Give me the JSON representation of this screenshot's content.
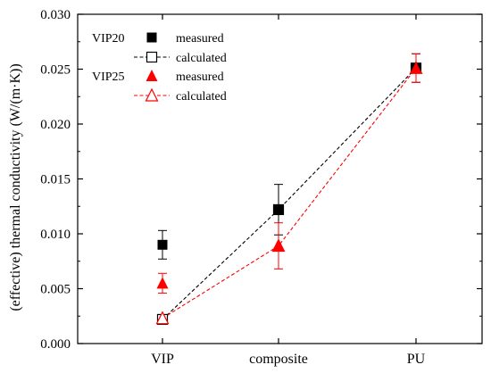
{
  "chart_data": {
    "type": "scatter",
    "ylabel": "(effective) thermal conductivity (W/(m·K))",
    "xlabel": "",
    "categories": [
      "VIP",
      "composite",
      "PU"
    ],
    "ylim": [
      0.0,
      0.03
    ],
    "yticks": [
      "0.000",
      "0.005",
      "0.010",
      "0.015",
      "0.020",
      "0.025",
      "0.030"
    ],
    "grid": false,
    "legend_position": "top-left",
    "legend": {
      "groups": [
        {
          "title": "VIP20",
          "entries": [
            {
              "label": "measured",
              "series": "VIP20 measured"
            },
            {
              "label": "calculated",
              "series": "VIP20 calculated"
            }
          ]
        },
        {
          "title": "VIP25",
          "entries": [
            {
              "label": "measured",
              "series": "VIP25 measured"
            },
            {
              "label": "calculated",
              "series": "VIP25 calculated"
            }
          ]
        }
      ]
    },
    "series": [
      {
        "name": "VIP20 measured",
        "color": "#000000",
        "marker": "square-filled",
        "line": "none",
        "values": [
          0.009,
          0.0122,
          0.0251
        ],
        "error": [
          0.0013,
          0.0023,
          0.0013
        ]
      },
      {
        "name": "VIP20 calculated",
        "color": "#000000",
        "marker": "square-open",
        "line": "dashed",
        "values": [
          0.0022,
          0.0122,
          0.0251
        ]
      },
      {
        "name": "VIP25 measured",
        "color": "#ff0000",
        "marker": "triangle-filled",
        "line": "none",
        "values": [
          0.0055,
          0.0089,
          0.0251
        ],
        "error": [
          0.0009,
          0.0021,
          0.0013
        ]
      },
      {
        "name": "VIP25 calculated",
        "color": "#ff0000",
        "marker": "triangle-open",
        "line": "dashed",
        "values": [
          0.0023,
          0.0089,
          0.0251
        ]
      }
    ]
  }
}
